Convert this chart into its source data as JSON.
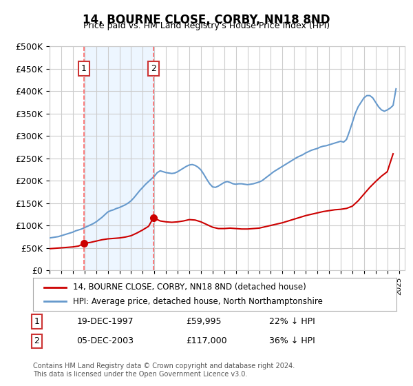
{
  "title": "14, BOURNE CLOSE, CORBY, NN18 8ND",
  "subtitle": "Price paid vs. HM Land Registry's House Price Index (HPI)",
  "legend_label_red": "14, BOURNE CLOSE, CORBY, NN18 8ND (detached house)",
  "legend_label_blue": "HPI: Average price, detached house, North Northamptonshire",
  "footer": "Contains HM Land Registry data © Crown copyright and database right 2024.\nThis data is licensed under the Open Government Licence v3.0.",
  "annotation1_date": "19-DEC-1997",
  "annotation1_price": "£59,995",
  "annotation1_hpi": "22% ↓ HPI",
  "annotation2_date": "05-DEC-2003",
  "annotation2_price": "£117,000",
  "annotation2_hpi": "36% ↓ HPI",
  "sale1_x": 1997.96,
  "sale1_y": 59995,
  "sale2_x": 2003.92,
  "sale2_y": 117000,
  "ylim": [
    0,
    500000
  ],
  "yticks": [
    0,
    50000,
    100000,
    150000,
    200000,
    250000,
    300000,
    350000,
    400000,
    450000,
    500000
  ],
  "ytick_labels": [
    "£0",
    "£50K",
    "£100K",
    "£150K",
    "£200K",
    "£250K",
    "£300K",
    "£350K",
    "£400K",
    "£450K",
    "£500K"
  ],
  "background_color": "#ffffff",
  "plot_bg_color": "#ffffff",
  "grid_color": "#cccccc",
  "red_color": "#cc0000",
  "blue_color": "#6699cc",
  "vline_color": "#ff6666",
  "shade_color": "#ddeeff",
  "hpi_x": [
    1995.0,
    1995.25,
    1995.5,
    1995.75,
    1996.0,
    1996.25,
    1996.5,
    1996.75,
    1997.0,
    1997.25,
    1997.5,
    1997.75,
    1998.0,
    1998.25,
    1998.5,
    1998.75,
    1999.0,
    1999.25,
    1999.5,
    1999.75,
    2000.0,
    2000.25,
    2000.5,
    2000.75,
    2001.0,
    2001.25,
    2001.5,
    2001.75,
    2002.0,
    2002.25,
    2002.5,
    2002.75,
    2003.0,
    2003.25,
    2003.5,
    2003.75,
    2004.0,
    2004.25,
    2004.5,
    2004.75,
    2005.0,
    2005.25,
    2005.5,
    2005.75,
    2006.0,
    2006.25,
    2006.5,
    2006.75,
    2007.0,
    2007.25,
    2007.5,
    2007.75,
    2008.0,
    2008.25,
    2008.5,
    2008.75,
    2009.0,
    2009.25,
    2009.5,
    2009.75,
    2010.0,
    2010.25,
    2010.5,
    2010.75,
    2011.0,
    2011.25,
    2011.5,
    2011.75,
    2012.0,
    2012.25,
    2012.5,
    2012.75,
    2013.0,
    2013.25,
    2013.5,
    2013.75,
    2014.0,
    2014.25,
    2014.5,
    2014.75,
    2015.0,
    2015.25,
    2015.5,
    2015.75,
    2016.0,
    2016.25,
    2016.5,
    2016.75,
    2017.0,
    2017.25,
    2017.5,
    2017.75,
    2018.0,
    2018.25,
    2018.5,
    2018.75,
    2019.0,
    2019.25,
    2019.5,
    2019.75,
    2020.0,
    2020.25,
    2020.5,
    2020.75,
    2021.0,
    2021.25,
    2021.5,
    2021.75,
    2022.0,
    2022.25,
    2022.5,
    2022.75,
    2023.0,
    2023.25,
    2023.5,
    2023.75,
    2024.0,
    2024.25,
    2024.5,
    2024.75
  ],
  "hpi_y": [
    72000,
    73000,
    74000,
    75000,
    77000,
    79000,
    81000,
    83000,
    85000,
    88000,
    90000,
    92000,
    95000,
    98000,
    101000,
    104000,
    108000,
    113000,
    118000,
    124000,
    130000,
    133000,
    135000,
    138000,
    140000,
    143000,
    146000,
    150000,
    155000,
    162000,
    170000,
    178000,
    185000,
    192000,
    198000,
    204000,
    210000,
    218000,
    222000,
    220000,
    218000,
    217000,
    216000,
    217000,
    220000,
    224000,
    228000,
    232000,
    235000,
    236000,
    234000,
    230000,
    224000,
    214000,
    203000,
    193000,
    186000,
    185000,
    188000,
    192000,
    196000,
    198000,
    196000,
    193000,
    192000,
    193000,
    193000,
    192000,
    191000,
    192000,
    193000,
    195000,
    197000,
    200000,
    205000,
    210000,
    215000,
    220000,
    224000,
    228000,
    232000,
    236000,
    240000,
    244000,
    248000,
    252000,
    255000,
    258000,
    262000,
    265000,
    268000,
    270000,
    272000,
    275000,
    277000,
    278000,
    280000,
    282000,
    284000,
    286000,
    288000,
    286000,
    292000,
    310000,
    330000,
    350000,
    365000,
    375000,
    385000,
    390000,
    390000,
    385000,
    375000,
    365000,
    358000,
    355000,
    358000,
    362000,
    368000,
    405000
  ],
  "red_x": [
    1995.0,
    1995.5,
    1996.0,
    1996.5,
    1997.0,
    1997.5,
    1997.96,
    1998.5,
    1999.0,
    1999.5,
    2000.0,
    2000.5,
    2001.0,
    2001.5,
    2002.0,
    2002.5,
    2003.0,
    2003.5,
    2003.92,
    2004.5,
    2005.0,
    2005.5,
    2006.0,
    2006.5,
    2007.0,
    2007.5,
    2008.0,
    2008.5,
    2009.0,
    2009.5,
    2010.0,
    2010.5,
    2011.0,
    2011.5,
    2012.0,
    2012.5,
    2013.0,
    2013.5,
    2014.0,
    2014.5,
    2015.0,
    2015.5,
    2016.0,
    2016.5,
    2017.0,
    2017.5,
    2018.0,
    2018.5,
    2019.0,
    2019.5,
    2020.0,
    2020.5,
    2021.0,
    2021.5,
    2022.0,
    2022.5,
    2023.0,
    2023.5,
    2024.0,
    2024.5
  ],
  "red_y": [
    48000,
    49000,
    50000,
    51000,
    52000,
    54000,
    59995,
    62000,
    65000,
    68000,
    70000,
    71000,
    72000,
    74000,
    77000,
    83000,
    90000,
    98000,
    117000,
    110000,
    108000,
    107000,
    108000,
    110000,
    113000,
    112000,
    108000,
    102000,
    96000,
    93000,
    93000,
    94000,
    93000,
    92000,
    92000,
    93000,
    94000,
    97000,
    100000,
    103000,
    106000,
    110000,
    114000,
    118000,
    122000,
    125000,
    128000,
    131000,
    133000,
    135000,
    136000,
    138000,
    143000,
    155000,
    170000,
    185000,
    198000,
    210000,
    220000,
    260000
  ],
  "xmin": 1995.0,
  "xmax": 2025.5
}
